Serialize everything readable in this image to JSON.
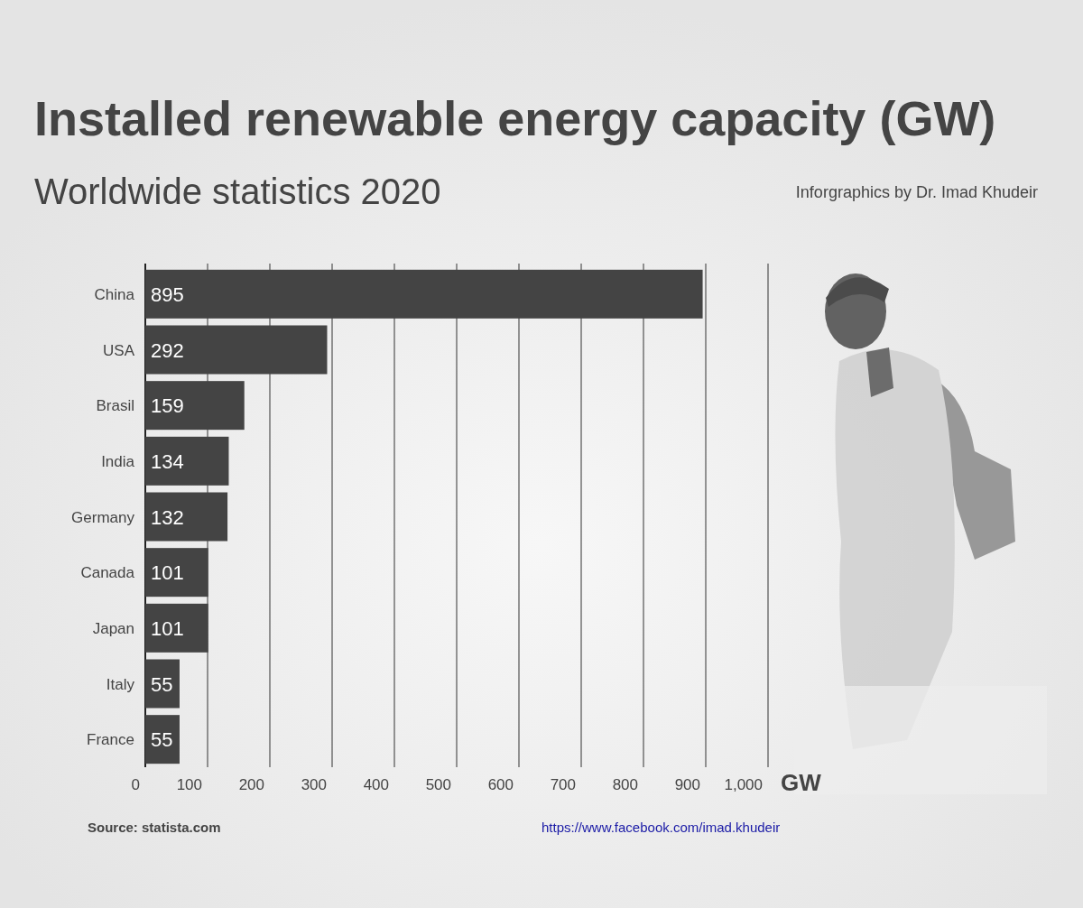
{
  "chart_data": {
    "type": "bar",
    "orientation": "horizontal",
    "title": "Installed renewable energy capacity (GW)",
    "subtitle": "Worldwide statistics 2020",
    "annotations": [
      "Inforgraphics by Dr. Imad Khudeir",
      "Source: statista.com",
      "https://www.facebook.com/imad.khudeir"
    ],
    "categories": [
      "China",
      "USA",
      "Brasil",
      "India",
      "Germany",
      "Canada",
      "Japan",
      "Italy",
      "France"
    ],
    "values": [
      895,
      292,
      159,
      134,
      132,
      101,
      101,
      55,
      55
    ],
    "color": "#444444",
    "xlabel": "GW",
    "xlim": [
      0,
      1000
    ],
    "xticks": [
      0,
      100,
      200,
      300,
      400,
      500,
      600,
      700,
      800,
      900,
      {
        "value": 1000,
        "label": "1,000"
      }
    ],
    "grid": true,
    "data_labels": true
  }
}
